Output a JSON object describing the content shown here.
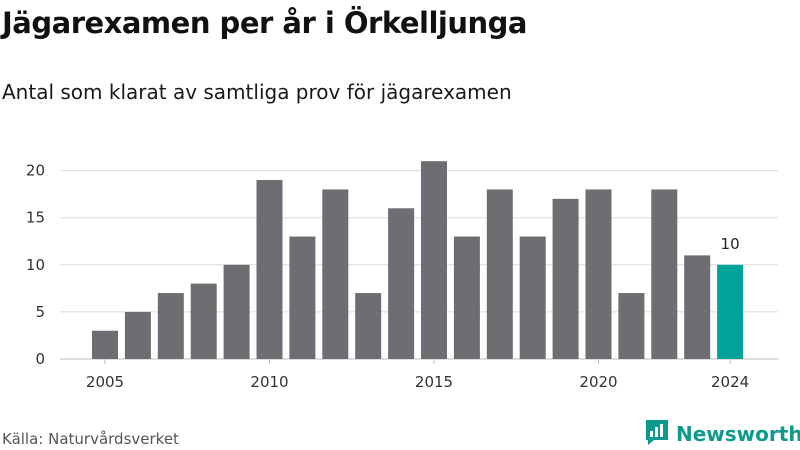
{
  "title": "Jägarexamen per år i Örkelljunga",
  "subtitle": "Antal som klarat av samtliga prov för jägarexamen",
  "source": "Källa: Naturvårdsverket",
  "brand": {
    "name": "Newsworthy",
    "icon": "newsworthy-logo-icon",
    "color": "#0c9a8d"
  },
  "chart_data": {
    "type": "bar",
    "categories": [
      "2005",
      "2006",
      "2007",
      "2008",
      "2009",
      "2010",
      "2011",
      "2012",
      "2013",
      "2014",
      "2015",
      "2016",
      "2017",
      "2018",
      "2019",
      "2020",
      "2021",
      "2022",
      "2023",
      "2024"
    ],
    "values": [
      3,
      5,
      7,
      8,
      10,
      19,
      13,
      18,
      7,
      16,
      21,
      13,
      18,
      13,
      17,
      18,
      7,
      18,
      11,
      10
    ],
    "x_tick_labels": [
      "2005",
      "2010",
      "2015",
      "2020",
      "2024"
    ],
    "y_ticks": [
      0,
      5,
      10,
      15,
      20
    ],
    "ylim": [
      0,
      22.5
    ],
    "grid": true,
    "colors": {
      "default": "#6e6d72",
      "highlight": "#00a39a"
    },
    "highlight_category": "2024",
    "data_labels": [
      {
        "category": "2024",
        "text": "10"
      }
    ]
  }
}
